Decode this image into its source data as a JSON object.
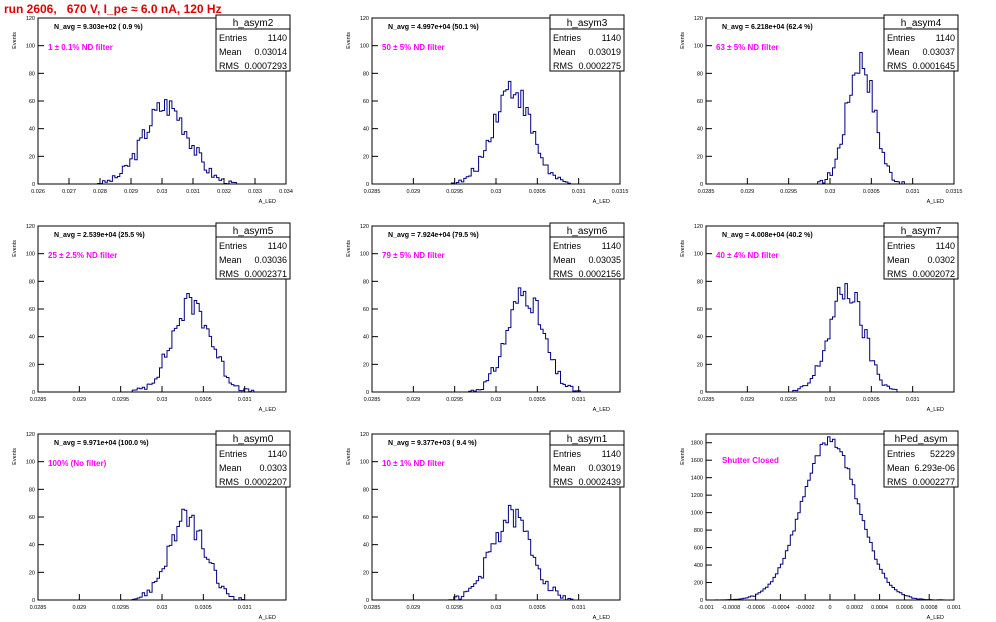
{
  "page_title": "run 2606,   670 V, I_pe ≈ 6.0 nA, 120 Hz",
  "colors": {
    "hist": "#000080",
    "axis": "#000000",
    "label_magenta": "#ff00ff",
    "title_red": "#e00000"
  },
  "chart_data": [
    {
      "type": "histogram",
      "name": "h_asym2",
      "stats": {
        "entries": "1140",
        "mean": "0.03014",
        "rms": "0.0007293"
      },
      "navg": "N_avg = 9.303e+02 (  0.9 %)",
      "filter_label": "1 ±  0.1% ND filter",
      "xlim": [
        0.026,
        0.034
      ],
      "ylim": [
        0,
        120
      ],
      "xticks": [
        "0.026",
        "0.027",
        "0.028",
        "0.029",
        "0.03",
        "0.031",
        "0.032",
        "0.033",
        "0.034"
      ],
      "yticks": [
        "0",
        "20",
        "40",
        "60",
        "80",
        "100",
        "120"
      ],
      "xlabel": "A_LED",
      "ylabel": "Events",
      "mean_val": 0.03014,
      "rms_val": 0.0007293,
      "peak": 57
    },
    {
      "type": "histogram",
      "name": "h_asym3",
      "stats": {
        "entries": "1140",
        "mean": "0.03019",
        "rms": "0.0002275"
      },
      "navg": "N_avg = 4.997e+04 (50.1 %)",
      "filter_label": "50 ±  5% ND filter",
      "xlim": [
        0.0285,
        0.0315
      ],
      "ylim": [
        0,
        120
      ],
      "xticks": [
        "0.0285",
        "0.029",
        "0.0295",
        "0.03",
        "0.0305",
        "0.031",
        "0.0315"
      ],
      "yticks": [
        "0",
        "20",
        "40",
        "60",
        "80",
        "100",
        "120"
      ],
      "xlabel": "A_LED",
      "ylabel": "Events",
      "mean_val": 0.03019,
      "rms_val": 0.0002275,
      "peak": 70
    },
    {
      "type": "histogram",
      "name": "h_asym4",
      "stats": {
        "entries": "1140",
        "mean": "0.03037",
        "rms": "0.0001645"
      },
      "navg": "N_avg = 6.218e+04 (62.4 %)",
      "filter_label": "63 ±  5% ND filter",
      "xlim": [
        0.0285,
        0.0315
      ],
      "ylim": [
        0,
        120
      ],
      "xticks": [
        "0.0285",
        "0.029",
        "0.0295",
        "0.03",
        "0.0305",
        "0.031",
        "0.0315"
      ],
      "yticks": [
        "0",
        "20",
        "40",
        "60",
        "80",
        "100",
        "120"
      ],
      "xlabel": "A_LED",
      "ylabel": "Events",
      "mean_val": 0.03037,
      "rms_val": 0.0001645,
      "peak": 90
    },
    {
      "type": "histogram",
      "name": "h_asym5",
      "stats": {
        "entries": "1140",
        "mean": "0.03036",
        "rms": "0.0002371"
      },
      "navg": "N_avg = 2.539e+04 (25.5 %)",
      "filter_label": "25 ±  2.5% ND filter",
      "xlim": [
        0.0285,
        0.0315
      ],
      "ylim": [
        0,
        120
      ],
      "xticks": [
        "0.0285",
        "0.029",
        "0.0295",
        "0.03",
        "0.0305",
        "0.031"
      ],
      "yticks": [
        "0",
        "20",
        "40",
        "60",
        "80",
        "100",
        "120"
      ],
      "xlabel": "A_LED",
      "ylabel": "Events",
      "mean_val": 0.03036,
      "rms_val": 0.0002371,
      "peak": 64
    },
    {
      "type": "histogram",
      "name": "h_asym6",
      "stats": {
        "entries": "1140",
        "mean": "0.03035",
        "rms": "0.0002156"
      },
      "navg": "N_avg = 7.924e+04 (79.5 %)",
      "filter_label": "79 ±  5% ND filter",
      "xlim": [
        0.0285,
        0.0315
      ],
      "ylim": [
        0,
        120
      ],
      "xticks": [
        "0.0285",
        "0.029",
        "0.0295",
        "0.03",
        "0.0305",
        "0.031"
      ],
      "yticks": [
        "0",
        "20",
        "40",
        "60",
        "80",
        "100",
        "120"
      ],
      "xlabel": "A_LED",
      "ylabel": "Events",
      "mean_val": 0.03035,
      "rms_val": 0.0002156,
      "peak": 72
    },
    {
      "type": "histogram",
      "name": "h_asym7",
      "stats": {
        "entries": "1140",
        "mean": "0.0302",
        "rms": "0.0002072"
      },
      "navg": "N_avg = 4.008e+04 (40.2 %)",
      "filter_label": "40 ±  4% ND filter",
      "xlim": [
        0.0285,
        0.0315
      ],
      "ylim": [
        0,
        120
      ],
      "xticks": [
        "0.0285",
        "0.029",
        "0.0295",
        "0.03",
        "0.0305",
        "0.031"
      ],
      "yticks": [
        "0",
        "20",
        "40",
        "60",
        "80",
        "100",
        "120"
      ],
      "xlabel": "A_LED",
      "ylabel": "Events",
      "mean_val": 0.0302,
      "rms_val": 0.0002072,
      "peak": 74
    },
    {
      "type": "histogram",
      "name": "h_asym0",
      "stats": {
        "entries": "1140",
        "mean": "0.0303",
        "rms": "0.0002207"
      },
      "navg": "N_avg = 9.971e+04 (100.0 %)",
      "filter_label": "100% (No filter)",
      "xlim": [
        0.0285,
        0.0315
      ],
      "ylim": [
        0,
        120
      ],
      "xticks": [
        "0.0285",
        "0.029",
        "0.0295",
        "0.03",
        "0.0305",
        "0.031"
      ],
      "yticks": [
        "0",
        "20",
        "40",
        "60",
        "80",
        "100",
        "120"
      ],
      "xlabel": "A_LED",
      "ylabel": "Events",
      "mean_val": 0.0303,
      "rms_val": 0.0002207,
      "peak": 58
    },
    {
      "type": "histogram",
      "name": "h_asym1",
      "stats": {
        "entries": "1140",
        "mean": "0.03019",
        "rms": "0.0002439"
      },
      "navg": "N_avg = 9.377e+03 (  9.4 %)",
      "filter_label": "10 ±  1% ND filter",
      "xlim": [
        0.0285,
        0.0315
      ],
      "ylim": [
        0,
        120
      ],
      "xticks": [
        "0.0285",
        "0.029",
        "0.0295",
        "0.03",
        "0.0305",
        "0.031"
      ],
      "yticks": [
        "0",
        "20",
        "40",
        "60",
        "80",
        "100",
        "120"
      ],
      "xlabel": "A_LED",
      "ylabel": "Events",
      "mean_val": 0.03019,
      "rms_val": 0.0002439,
      "peak": 60
    },
    {
      "type": "histogram",
      "name": "hPed_asym",
      "stats": {
        "entries": "52229",
        "mean": "6.293e-06",
        "rms": "0.0002277"
      },
      "navg": "",
      "filter_label": "Shutter Closed",
      "xlim": [
        -0.001,
        0.001
      ],
      "ylim": [
        0,
        1900
      ],
      "xticks": [
        "-0.001",
        "-0.0008",
        "-0.0006",
        "-0.0004",
        "-0.0002",
        "0",
        "0.0002",
        "0.0004",
        "0.0006",
        "0.0008",
        "0.001"
      ],
      "yticks": [
        "0",
        "200",
        "400",
        "600",
        "800",
        "1000",
        "1200",
        "1400",
        "1600",
        "1800"
      ],
      "xlabel": "A_LED",
      "ylabel": "Events",
      "mean_val": 0.0,
      "rms_val": 0.0002277,
      "peak": 1830
    }
  ]
}
